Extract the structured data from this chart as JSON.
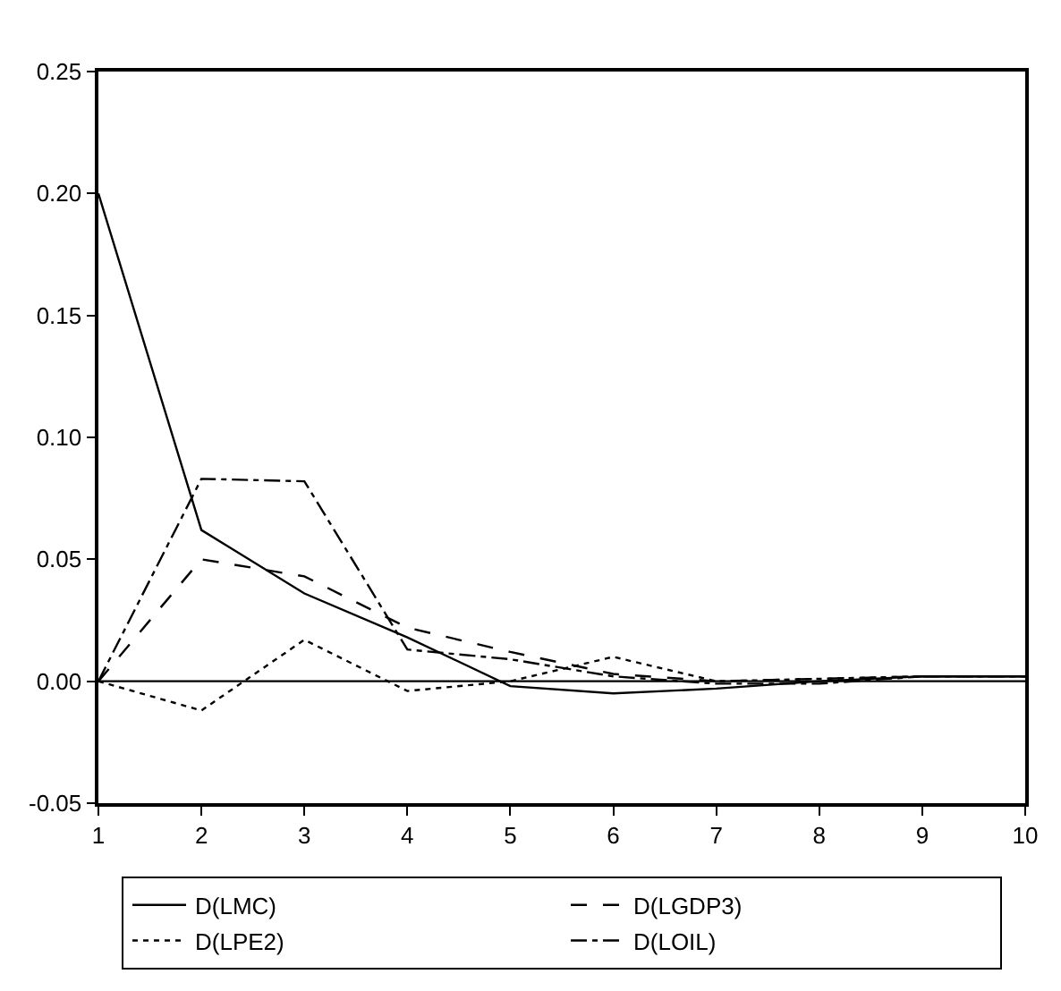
{
  "chart_data": {
    "type": "line",
    "x": [
      1,
      2,
      3,
      4,
      5,
      6,
      7,
      8,
      9,
      10
    ],
    "series": [
      {
        "name": "D(LMC)",
        "color": "#000000",
        "line_style": "solid",
        "values": [
          0.2,
          0.062,
          0.036,
          0.018,
          -0.002,
          -0.005,
          -0.003,
          0.0,
          0.002,
          0.002
        ]
      },
      {
        "name": "D(LGDP3)",
        "color": "#000000",
        "line_style": "dashed",
        "values": [
          0.0,
          0.05,
          0.043,
          0.022,
          0.012,
          0.003,
          0.0,
          0.001,
          0.002,
          0.002
        ]
      },
      {
        "name": "D(LPE2)",
        "color": "#000000",
        "line_style": "dotted",
        "values": [
          0.0,
          -0.012,
          0.017,
          -0.004,
          0.0,
          0.01,
          0.0,
          0.001,
          0.002,
          0.002
        ]
      },
      {
        "name": "D(LOIL)",
        "color": "#000000",
        "line_style": "dashdot",
        "values": [
          0.0,
          0.083,
          0.082,
          0.013,
          0.009,
          0.002,
          -0.001,
          -0.001,
          0.002,
          0.002
        ]
      }
    ],
    "xlim": [
      1,
      10
    ],
    "xticks": [
      1,
      2,
      3,
      4,
      5,
      6,
      7,
      8,
      9,
      10
    ],
    "ylim": [
      -0.05,
      0.25
    ],
    "yticks": [
      {
        "value": -0.05,
        "label": "-0.05"
      },
      {
        "value": 0,
        "label": "0.00"
      },
      {
        "value": 0.05,
        "label": "0.05"
      },
      {
        "value": 0.1,
        "label": "0.10"
      },
      {
        "value": 0.15,
        "label": "0.15"
      },
      {
        "value": 0.2,
        "label": "0.20"
      },
      {
        "value": 0.25,
        "label": "0.25"
      }
    ],
    "ref_lines": [
      {
        "axis": "y",
        "value": 0,
        "color": "#000000",
        "line_style": "solid"
      }
    ],
    "legend": "bottom",
    "marker": "none"
  }
}
